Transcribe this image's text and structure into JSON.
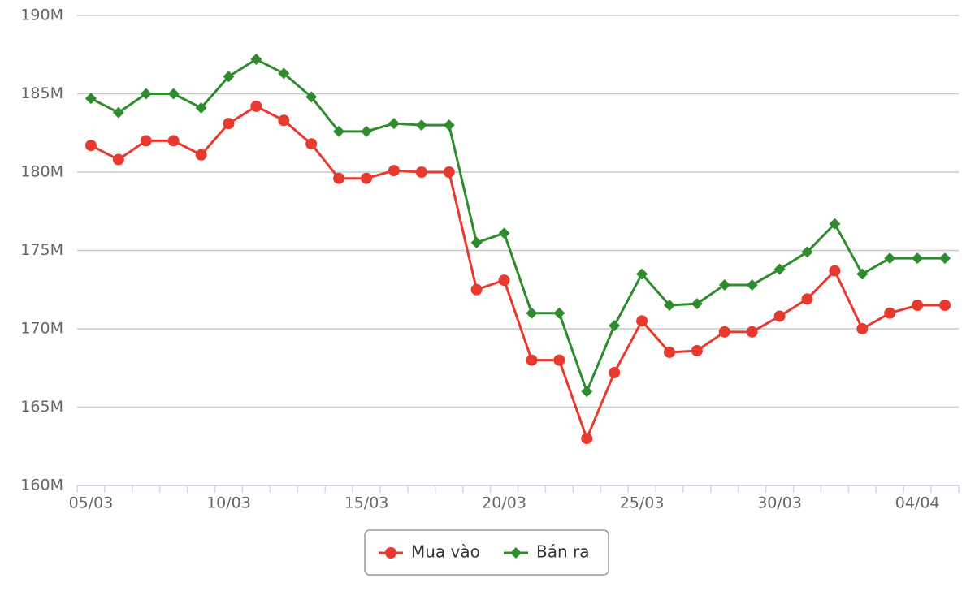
{
  "chart_data": {
    "type": "line",
    "categories": [
      "05/03",
      null,
      null,
      null,
      null,
      "10/03",
      null,
      null,
      null,
      null,
      "15/03",
      null,
      null,
      null,
      null,
      "20/03",
      null,
      null,
      null,
      null,
      "25/03",
      null,
      null,
      null,
      null,
      "30/03",
      null,
      null,
      null,
      null,
      "04/04",
      null
    ],
    "series": [
      {
        "name": "Mua vào",
        "color": "#e8392f",
        "marker": "circle",
        "values": [
          181700000,
          180800000,
          182000000,
          182000000,
          181100000,
          183100000,
          184200000,
          183300000,
          181800000,
          179600000,
          179600000,
          180100000,
          180000000,
          180000000,
          172500000,
          173100000,
          168000000,
          168000000,
          163000000,
          167200000,
          170500000,
          168500000,
          168600000,
          169800000,
          169800000,
          170800000,
          171900000,
          173700000,
          170000000,
          171000000,
          171500000,
          171500000
        ]
      },
      {
        "name": "Bán ra",
        "color": "#2e8b2e",
        "marker": "diamond",
        "values": [
          184700000,
          183800000,
          185000000,
          185000000,
          184100000,
          186100000,
          187200000,
          186300000,
          184800000,
          182600000,
          182600000,
          183100000,
          183000000,
          183000000,
          175500000,
          176100000,
          171000000,
          171000000,
          166000000,
          170200000,
          173500000,
          171500000,
          171600000,
          172800000,
          172800000,
          173800000,
          174900000,
          176700000,
          173500000,
          174500000,
          174500000,
          174500000
        ]
      }
    ],
    "ylim": [
      160000000,
      190000000
    ],
    "yticks": [
      {
        "value": 160000000,
        "label": "160M"
      },
      {
        "value": 165000000,
        "label": "165M"
      },
      {
        "value": 170000000,
        "label": "170M"
      },
      {
        "value": 175000000,
        "label": "175M"
      },
      {
        "value": 180000000,
        "label": "180M"
      },
      {
        "value": 185000000,
        "label": "185M"
      },
      {
        "value": 190000000,
        "label": "190M"
      }
    ],
    "grid": true,
    "legend": "bottom"
  }
}
